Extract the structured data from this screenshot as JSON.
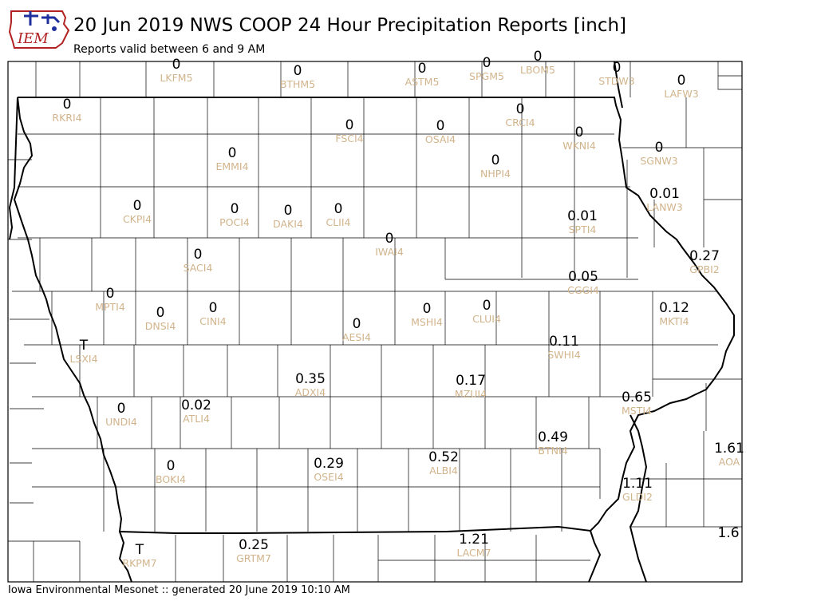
{
  "header": {
    "title": "20 Jun 2019 NWS COOP 24 Hour Precipitation Reports [inch]",
    "subtitle": "Reports valid between 6 and 9 AM",
    "logo_text": "IEM"
  },
  "footer": {
    "text": "Iowa Environmental Mesonet :: generated 20 June 2019 10:10 AM"
  },
  "colors": {
    "value": "#000000",
    "station_id": "#d2b48c",
    "state_border": "#000000",
    "county_lines": "#000000",
    "logo_red": "#b22222",
    "logo_blue": "#1f2f9e"
  },
  "stations": [
    {
      "id": "LKFM5",
      "value": "0"
    },
    {
      "id": "BTHM5",
      "value": "0"
    },
    {
      "id": "ASTM5",
      "value": "0"
    },
    {
      "id": "SPGM5",
      "value": "0"
    },
    {
      "id": "LBOM5",
      "value": "0"
    },
    {
      "id": "STDW3",
      "value": "0"
    },
    {
      "id": "LAFW3",
      "value": "0"
    },
    {
      "id": "RKRI4",
      "value": "0"
    },
    {
      "id": "CRCI4",
      "value": "0"
    },
    {
      "id": "FSCI4",
      "value": "0"
    },
    {
      "id": "OSAI4",
      "value": "0"
    },
    {
      "id": "WKNI4",
      "value": "0"
    },
    {
      "id": "EMMI4",
      "value": "0"
    },
    {
      "id": "NHPI4",
      "value": "0"
    },
    {
      "id": "SGNW3",
      "value": "0"
    },
    {
      "id": "LANW3",
      "value": "0.01"
    },
    {
      "id": "CKPI4",
      "value": "0"
    },
    {
      "id": "POCI4",
      "value": "0"
    },
    {
      "id": "DAKI4",
      "value": "0"
    },
    {
      "id": "CLII4",
      "value": "0"
    },
    {
      "id": "SPTI4",
      "value": "0.01"
    },
    {
      "id": "IWAI4",
      "value": "0"
    },
    {
      "id": "SACI4",
      "value": "0"
    },
    {
      "id": "GPBI2",
      "value": "0.27"
    },
    {
      "id": "CGGI4",
      "value": "0.05"
    },
    {
      "id": "MPTI4",
      "value": "0"
    },
    {
      "id": "DNSI4",
      "value": "0"
    },
    {
      "id": "CINI4",
      "value": "0"
    },
    {
      "id": "MSHI4",
      "value": "0"
    },
    {
      "id": "CLUI4",
      "value": "0"
    },
    {
      "id": "MKTI4",
      "value": "0.12"
    },
    {
      "id": "AESI4",
      "value": "0"
    },
    {
      "id": "LSXI4",
      "value": "T"
    },
    {
      "id": "SWHI4",
      "value": "0.11"
    },
    {
      "id": "ADXI4",
      "value": "0.35"
    },
    {
      "id": "MZUI4",
      "value": "0.17"
    },
    {
      "id": "MSTI4",
      "value": "0.65"
    },
    {
      "id": "UNDI4",
      "value": "0"
    },
    {
      "id": "ATLI4",
      "value": "0.02"
    },
    {
      "id": "BTNI4",
      "value": "0.49"
    },
    {
      "id": "AOA",
      "value": "1.61"
    },
    {
      "id": "BOKI4",
      "value": "0"
    },
    {
      "id": "OSEI4",
      "value": "0.29"
    },
    {
      "id": "ALBI4",
      "value": "0.52"
    },
    {
      "id": "GLDI2",
      "value": "1.11"
    },
    {
      "id": "",
      "value": "1.6"
    },
    {
      "id": "RKPM7",
      "value": "T"
    },
    {
      "id": "GRTM7",
      "value": "0.25"
    },
    {
      "id": "LACM7",
      "value": "1.21"
    }
  ]
}
